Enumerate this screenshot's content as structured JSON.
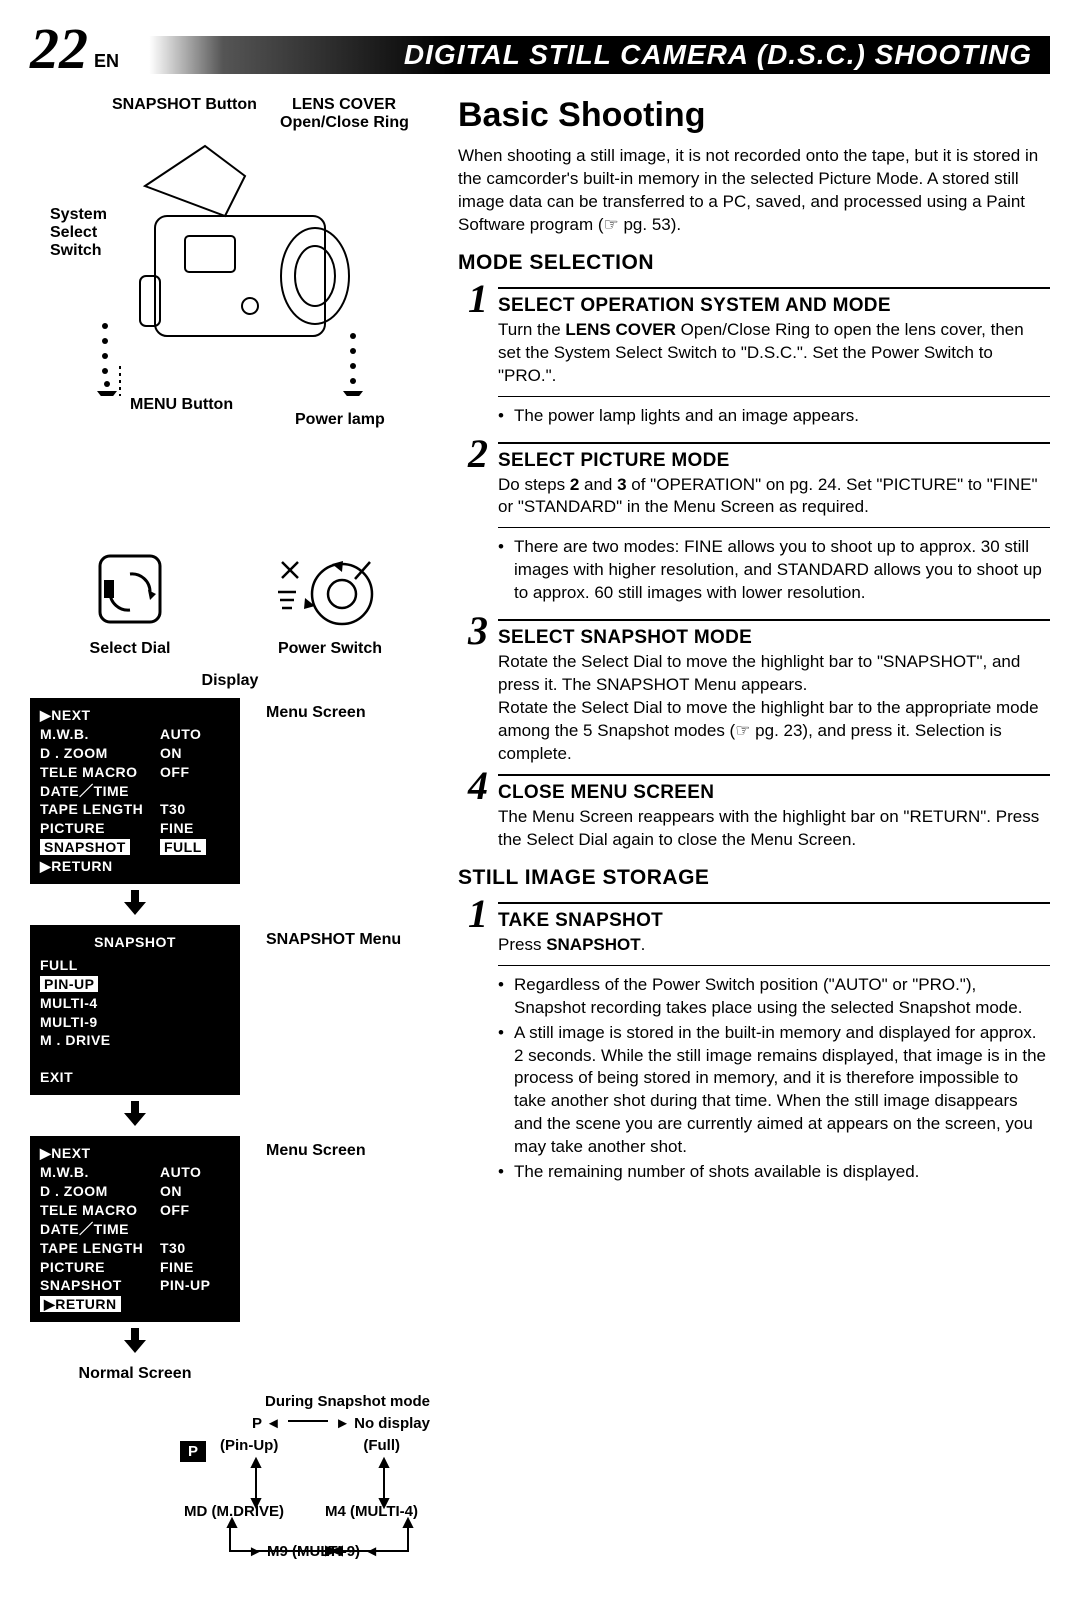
{
  "page": {
    "number": "22",
    "lang": "EN",
    "title": "DIGITAL STILL CAMERA (D.S.C.)  SHOOTING"
  },
  "left": {
    "labels": {
      "snapshot_btn": "SNAPSHOT Button",
      "lens_cover": "LENS COVER",
      "lens_cover2": "Open/Close Ring",
      "system_switch": "System",
      "system_switch2": "Select",
      "system_switch3": "Switch",
      "menu_btn": "MENU Button",
      "power_lamp": "Power lamp"
    },
    "sub": {
      "select_dial": "Select Dial",
      "power_switch": "Power Switch"
    },
    "display_caption": "Display",
    "menu1": {
      "label": "Menu Screen",
      "rows": [
        {
          "k": "▶NEXT",
          "v": ""
        },
        {
          "k": "M.W.B.",
          "v": "AUTO"
        },
        {
          "k": "D . ZOOM",
          "v": "ON"
        },
        {
          "k": "TELE  MACRO",
          "v": "OFF"
        },
        {
          "k": "DATE／TIME",
          "v": ""
        },
        {
          "k": "TAPE  LENGTH",
          "v": "T30"
        },
        {
          "k": "PICTURE",
          "v": "FINE"
        },
        {
          "k": "SNAPSHOT",
          "v": "FULL",
          "k_inv": true,
          "v_inv": true
        },
        {
          "k": "",
          "v": ""
        },
        {
          "k": "▶RETURN",
          "v": ""
        }
      ]
    },
    "menu2": {
      "label": "SNAPSHOT Menu",
      "title": "SNAPSHOT",
      "rows": [
        {
          "k": "FULL"
        },
        {
          "k": "PIN-UP",
          "k_inv": true
        },
        {
          "k": "MULTI-4"
        },
        {
          "k": "MULTI-9"
        },
        {
          "k": "M . DRIVE"
        }
      ],
      "footer": "EXIT"
    },
    "menu3": {
      "label": "Menu Screen",
      "rows": [
        {
          "k": "▶NEXT",
          "v": ""
        },
        {
          "k": "M.W.B.",
          "v": "AUTO"
        },
        {
          "k": "D . ZOOM",
          "v": "ON"
        },
        {
          "k": "TELE  MACRO",
          "v": "OFF"
        },
        {
          "k": "DATE／TIME",
          "v": ""
        },
        {
          "k": "TAPE  LENGTH",
          "v": "T30"
        },
        {
          "k": "PICTURE",
          "v": "FINE"
        },
        {
          "k": "SNAPSHOT",
          "v": "PIN-UP"
        },
        {
          "k": "",
          "v": ""
        },
        {
          "k": "▶RETURN",
          "v": "",
          "k_inv": true
        }
      ]
    },
    "normal_caption": "Normal Screen",
    "flow": {
      "title": "During Snapshot mode",
      "p": "P",
      "no_display": "No display",
      "pinup": "(Pin-Up)",
      "full": "(Full)",
      "md": "MD (M.DRIVE)",
      "m4": "M4 (MULTI-4)",
      "m9": "M9 (MULTI-9)"
    }
  },
  "right": {
    "h1": "Basic Shooting",
    "intro": "When shooting a still image, it is not recorded onto the tape, but it is stored in the camcorder's built-in memory in the selected Picture Mode. A stored still image data can be transferred to a PC, saved, and processed using a Paint Software program (☞ pg. 53).",
    "section1": {
      "heading": "MODE SELECTION",
      "steps": [
        {
          "num": "1",
          "title": "SELECT OPERATION SYSTEM AND MODE",
          "text": "Turn the <b>LENS COVER</b> Open/Close Ring to open the lens cover, then set the System Select Switch to \"D.S.C.\". Set the Power Switch to \"PRO.\".",
          "bullets": [
            "The power lamp lights and an image appears."
          ]
        },
        {
          "num": "2",
          "title": "SELECT PICTURE MODE",
          "text": "Do steps <b>2</b> and <b>3</b> of \"OPERATION\" on pg. 24. Set \"PICTURE\" to \"FINE\" or \"STANDARD\" in the Menu Screen as required.",
          "bullets": [
            "There are two modes: FINE allows you to shoot up to approx. 30 still images with higher resolution, and STANDARD allows you to shoot up to approx. 60 still images with lower resolution."
          ]
        },
        {
          "num": "3",
          "title": "SELECT SNAPSHOT MODE",
          "text": "Rotate the Select Dial to move the highlight bar to \"SNAPSHOT\", and press it. The SNAPSHOT Menu appears.\nRotate the Select Dial to move the highlight bar to the appropriate mode among the 5 Snapshot modes (☞ pg. 23), and press it. Selection is complete.",
          "bullets": []
        },
        {
          "num": "4",
          "title": "CLOSE MENU SCREEN",
          "text": "The Menu Screen reappears with the highlight bar on \"RETURN\". Press the Select Dial again to close the Menu Screen.",
          "bullets": []
        }
      ]
    },
    "section2": {
      "heading": "STILL IMAGE STORAGE",
      "steps": [
        {
          "num": "1",
          "title": "TAKE SNAPSHOT",
          "text": "Press <b>SNAPSHOT</b>.",
          "bullets": [
            "Regardless of the Power Switch position (\"AUTO\" or \"PRO.\"), Snapshot recording takes place using the selected Snapshot mode.",
            "A still image is stored in the built-in memory and displayed for approx. 2 seconds. While the still image remains displayed, that image is in the process of being stored in memory, and it is therefore impossible to take another shot during that time. When the still image disappears and the scene you are currently aimed at appears on the screen, you may take another shot.",
            "The remaining number of shots available is displayed."
          ]
        }
      ]
    }
  }
}
